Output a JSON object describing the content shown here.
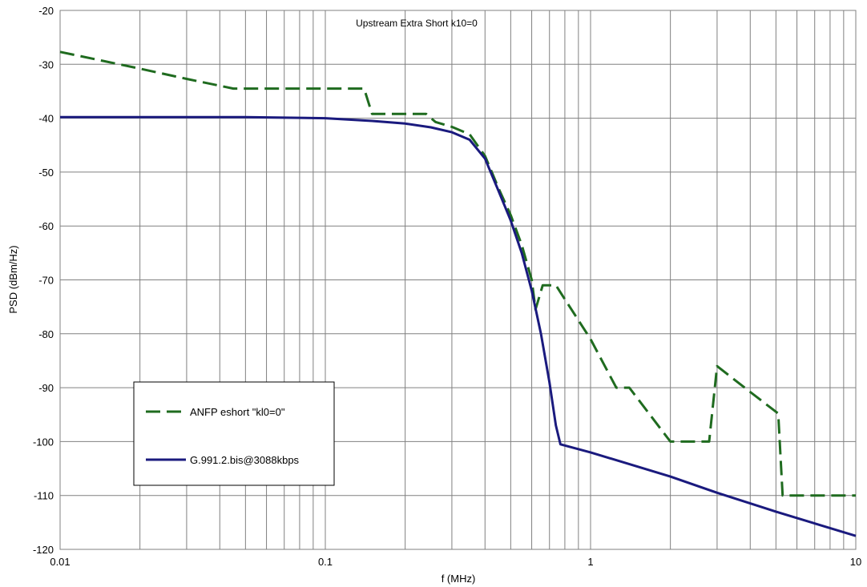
{
  "chart_data": {
    "type": "line",
    "title": "Upstream Extra Short k10=0",
    "xlabel": "f (MHz)",
    "ylabel": "PSD (dBm/Hz)",
    "xscale": "log",
    "xlim": [
      0.01,
      10
    ],
    "ylim": [
      -120,
      -20
    ],
    "grid": true,
    "legend_position": "bottom-left",
    "x_tick_labels": [
      "0.01",
      "0.1",
      "1",
      "10"
    ],
    "y_tick_labels": [
      "-20",
      "-30",
      "-40",
      "-50",
      "-60",
      "-70",
      "-80",
      "-90",
      "-100",
      "-110",
      "-120"
    ],
    "series": [
      {
        "name": "ANFP eshort \"kl0=0\"",
        "color": "#1f6b1f",
        "style": "dashed",
        "points": [
          [
            0.01,
            -27.7
          ],
          [
            0.02,
            -30.8
          ],
          [
            0.03,
            -32.7
          ],
          [
            0.045,
            -34.5
          ],
          [
            0.14,
            -34.5
          ],
          [
            0.15,
            -39.2
          ],
          [
            0.24,
            -39.2
          ],
          [
            0.26,
            -40.7
          ],
          [
            0.3,
            -41.6
          ],
          [
            0.35,
            -43.0
          ],
          [
            0.4,
            -47.0
          ],
          [
            0.45,
            -53.0
          ],
          [
            0.5,
            -58.0
          ],
          [
            0.55,
            -63.5
          ],
          [
            0.6,
            -70.0
          ],
          [
            0.62,
            -75.5
          ],
          [
            0.66,
            -71.0
          ],
          [
            0.74,
            -71.0
          ],
          [
            1.0,
            -81.0
          ],
          [
            1.25,
            -90.0
          ],
          [
            1.4,
            -90.0
          ],
          [
            2.0,
            -100.0
          ],
          [
            2.8,
            -100.0
          ],
          [
            3.0,
            -86.0
          ],
          [
            4.0,
            -90.8
          ],
          [
            5.1,
            -94.8
          ],
          [
            5.3,
            -110.0
          ],
          [
            10.0,
            -110.0
          ]
        ]
      },
      {
        "name": "G.991.2.bis@3088kbps",
        "color": "#1a1a7e",
        "style": "solid",
        "points": [
          [
            0.01,
            -39.8
          ],
          [
            0.05,
            -39.8
          ],
          [
            0.1,
            -40.0
          ],
          [
            0.15,
            -40.5
          ],
          [
            0.2,
            -41.0
          ],
          [
            0.25,
            -41.7
          ],
          [
            0.3,
            -42.6
          ],
          [
            0.35,
            -44.0
          ],
          [
            0.4,
            -47.5
          ],
          [
            0.45,
            -53.5
          ],
          [
            0.5,
            -59.0
          ],
          [
            0.55,
            -65.0
          ],
          [
            0.6,
            -72.0
          ],
          [
            0.65,
            -80.0
          ],
          [
            0.7,
            -89.0
          ],
          [
            0.74,
            -97.0
          ],
          [
            0.77,
            -100.5
          ],
          [
            1.0,
            -102.0
          ],
          [
            2.0,
            -106.5
          ],
          [
            3.0,
            -109.5
          ],
          [
            5.0,
            -113.0
          ],
          [
            10.0,
            -117.5
          ]
        ]
      }
    ]
  }
}
